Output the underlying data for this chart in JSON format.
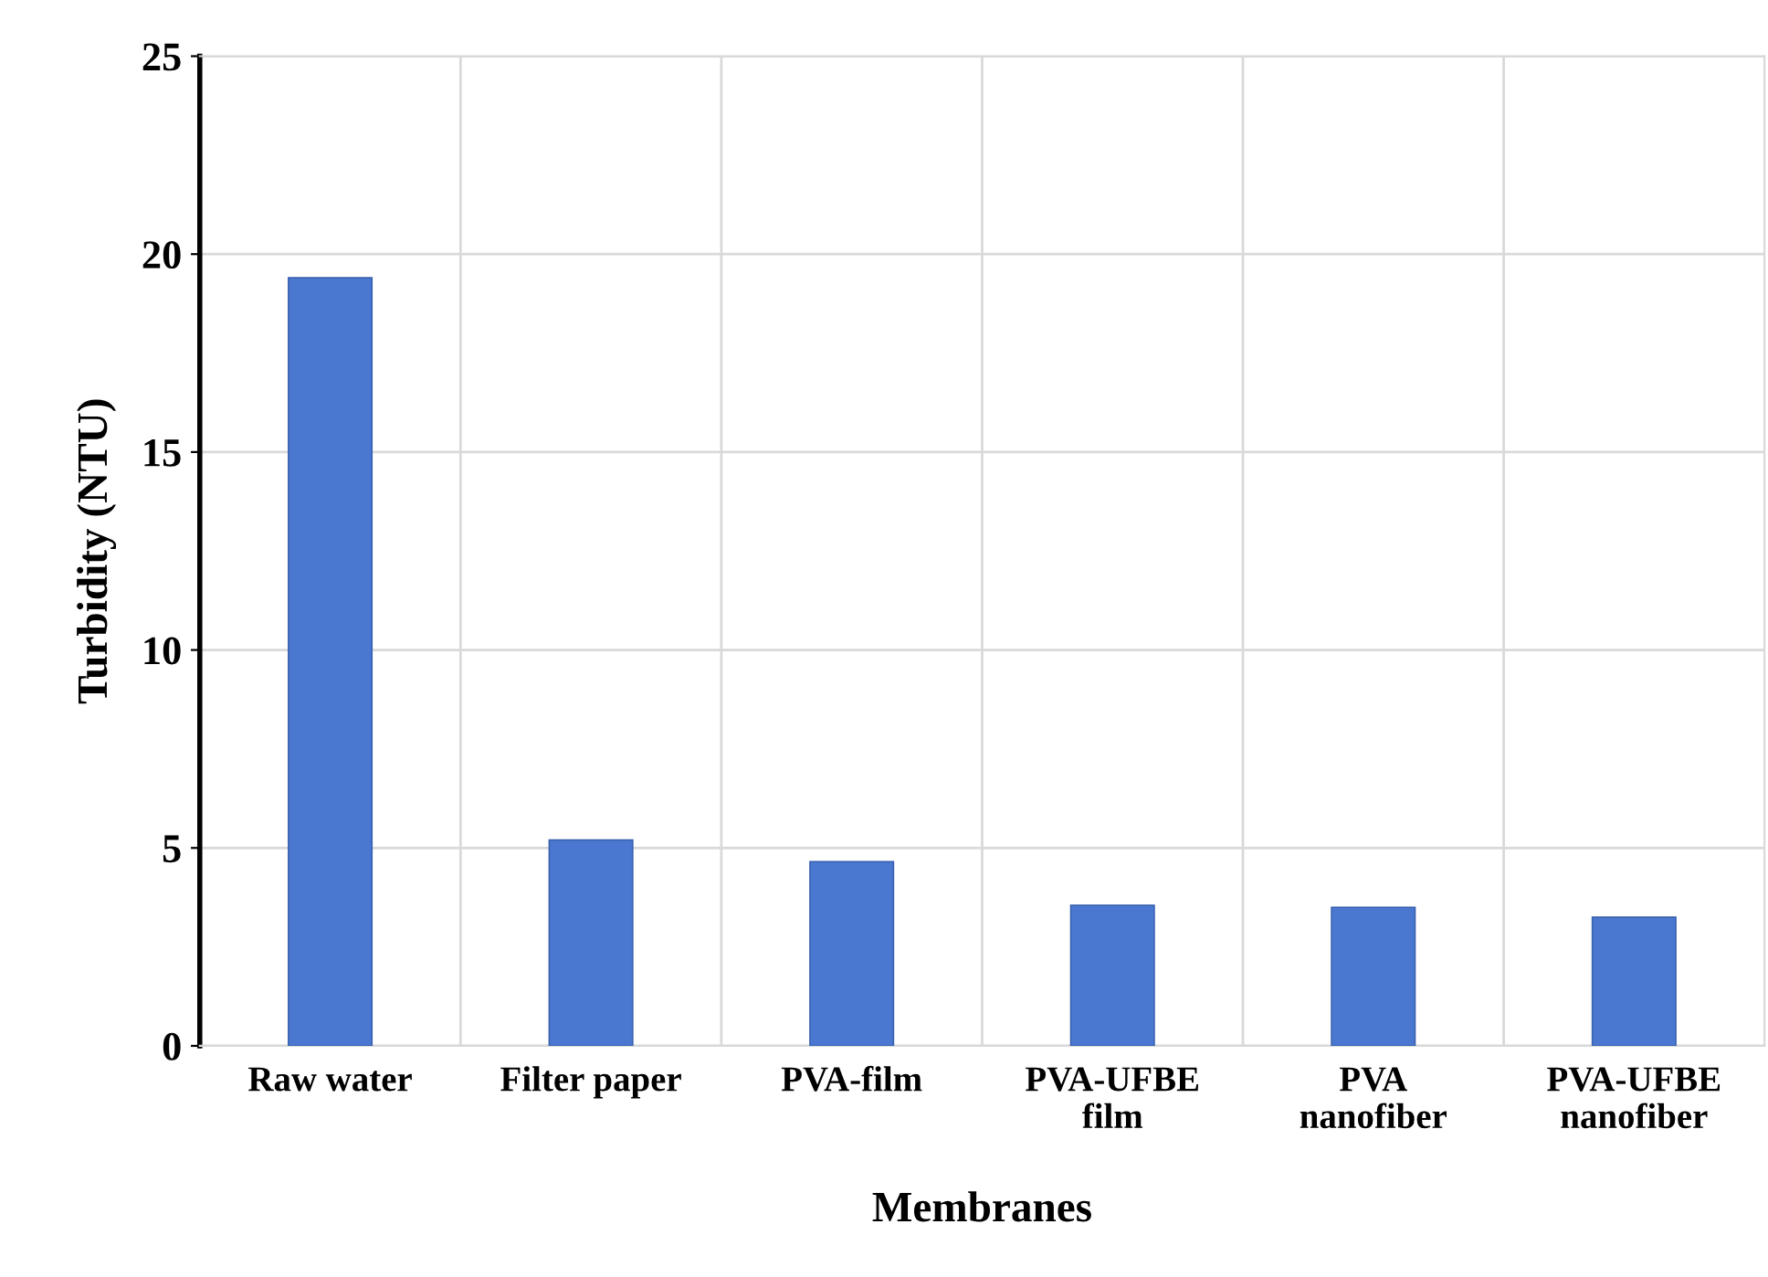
{
  "chart_data": {
    "type": "bar",
    "xlabel": "Membranes",
    "ylabel": "Turbidity (NTU)",
    "categories": [
      "Raw water",
      "Filter paper",
      "PVA-film",
      "PVA-UFBE\nfilm",
      "PVA\nnanofiber",
      "PVA-UFBE\nnanofiber"
    ],
    "values": [
      19.4,
      5.2,
      4.65,
      3.55,
      3.5,
      3.25
    ],
    "color": "#4a78d0",
    "ylim": [
      0,
      25
    ],
    "yticks": [
      0,
      5,
      10,
      15,
      20,
      25
    ],
    "grid": true
  }
}
